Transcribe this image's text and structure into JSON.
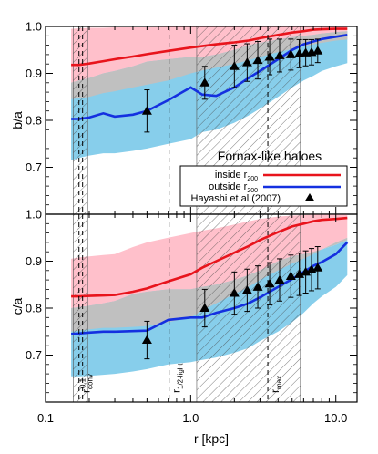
{
  "chart_data": {
    "type": "line",
    "x_scale": "log",
    "xlim": [
      0.1,
      14
    ],
    "xlabel": "r [kpc]",
    "xticks": [
      {
        "v": 0.1,
        "label": "0.1"
      },
      {
        "v": 1.0,
        "label": "1.0"
      },
      {
        "v": 10.0,
        "label": "10.0"
      }
    ],
    "legend_title": "Fornax-like haloes",
    "legend_placement": "upper-right of bottom panel",
    "legend": [
      {
        "key": "inside",
        "label": "inside r",
        "sub": "200",
        "color": "#e8141c"
      },
      {
        "key": "outside",
        "label": "outside r",
        "sub": "200",
        "color": "#1430e0"
      },
      {
        "key": "hayashi",
        "label": "Hayashi et al (2007)",
        "marker": "triangle"
      }
    ],
    "colors": {
      "red": "#e8141c",
      "blue": "#1430e0",
      "pink": "#ffc0cb",
      "lightblue": "#87ceeb",
      "overlap": "#c0c0c0"
    },
    "hatched_regions": [
      {
        "name": "convergence",
        "x": [
          0.155,
          0.195
        ]
      },
      {
        "name": "outer",
        "x": [
          1.1,
          5.7
        ]
      }
    ],
    "vlines": [
      {
        "name": "r_conv",
        "x": 0.17,
        "label_main": "r",
        "label_sub": "conv"
      },
      {
        "name": "r_conv_0.1",
        "x": 0.18,
        "label_main": "r",
        "label_sub": "0.1"
      },
      {
        "name": "r_half_light",
        "x": 0.71,
        "label_main": "r",
        "label_sub": "1/2-light"
      },
      {
        "name": "r_max",
        "x": 3.4,
        "label_main": "r",
        "label_sub": "max"
      }
    ],
    "panels": [
      {
        "id": "top",
        "ylabel": "b/a",
        "ylim": [
          0.6,
          1.0
        ],
        "yticks": [
          {
            "v": 0.7,
            "label": "0.7"
          },
          {
            "v": 0.8,
            "label": "0.8"
          },
          {
            "v": 0.9,
            "label": "0.9"
          },
          {
            "v": 1.0,
            "label": "1.0"
          }
        ],
        "x": [
          0.15,
          0.17,
          0.2,
          0.25,
          0.3,
          0.4,
          0.5,
          0.7,
          1.0,
          1.2,
          1.5,
          2.0,
          2.5,
          3.0,
          4.0,
          5.0,
          6.0,
          7.0,
          8.0,
          10.0,
          12.0
        ],
        "series": [
          {
            "name": "inside r200",
            "color": "#e8141c",
            "median": [
              0.918,
              0.918,
              0.921,
              0.926,
              0.93,
              0.936,
              0.941,
              0.948,
              0.955,
              0.958,
              0.962,
              0.966,
              0.97,
              0.975,
              0.982,
              0.987,
              0.99,
              0.993,
              0.994,
              0.995,
              0.995
            ],
            "lower": [
              0.845,
              0.847,
              0.85,
              0.858,
              0.862,
              0.87,
              0.876,
              0.885,
              0.9,
              0.906,
              0.912,
              0.92,
              0.928,
              0.935,
              0.945,
              0.952,
              0.958,
              0.962,
              0.965,
              0.97,
              0.972
            ],
            "upper": [
              0.995,
              0.996,
              0.997,
              0.997,
              0.998,
              0.998,
              0.998,
              0.999,
              0.999,
              0.999,
              0.999,
              0.999,
              1.0,
              1.0,
              1.0,
              1.0,
              1.0,
              1.0,
              1.0,
              1.0,
              1.0
            ]
          },
          {
            "name": "outside r200",
            "color": "#1430e0",
            "median": [
              0.803,
              0.803,
              0.806,
              0.815,
              0.808,
              0.812,
              0.82,
              0.843,
              0.87,
              0.855,
              0.852,
              0.87,
              0.89,
              0.905,
              0.93,
              0.95,
              0.962,
              0.968,
              0.973,
              0.978,
              0.982
            ],
            "lower": [
              0.715,
              0.72,
              0.725,
              0.73,
              0.73,
              0.735,
              0.74,
              0.75,
              0.76,
              0.775,
              0.78,
              0.795,
              0.81,
              0.825,
              0.85,
              0.87,
              0.885,
              0.895,
              0.905,
              0.915,
              0.922
            ],
            "upper": [
              0.88,
              0.885,
              0.89,
              0.9,
              0.905,
              0.915,
              0.925,
              0.93,
              0.935,
              0.935,
              0.94,
              0.95,
              0.96,
              0.965,
              0.972,
              0.977,
              0.98,
              0.982,
              0.985,
              0.988,
              0.99
            ]
          }
        ],
        "points": {
          "x": [
            0.5,
            1.25,
            2.0,
            2.45,
            2.9,
            3.5,
            4.1,
            4.9,
            5.6,
            6.2,
            6.8,
            7.5
          ],
          "y": [
            0.82,
            0.88,
            0.915,
            0.923,
            0.928,
            0.935,
            0.938,
            0.94,
            0.942,
            0.944,
            0.945,
            0.948
          ],
          "err": [
            0.045,
            0.035,
            0.045,
            0.04,
            0.04,
            0.038,
            0.035,
            0.033,
            0.03,
            0.028,
            0.027,
            0.025
          ]
        }
      },
      {
        "id": "bottom",
        "ylabel": "c/a",
        "ylim": [
          0.6,
          1.0
        ],
        "yticks": [
          {
            "v": 0.7,
            "label": "0.7"
          },
          {
            "v": 0.8,
            "label": "0.8"
          },
          {
            "v": 0.9,
            "label": "0.9"
          },
          {
            "v": 1.0,
            "label": "1.0"
          }
        ],
        "x": [
          0.15,
          0.17,
          0.2,
          0.25,
          0.3,
          0.4,
          0.5,
          0.7,
          1.0,
          1.2,
          1.5,
          2.0,
          2.5,
          3.0,
          4.0,
          5.0,
          6.0,
          7.0,
          8.0,
          10.0,
          12.0
        ],
        "series": [
          {
            "name": "inside r200",
            "color": "#e8141c",
            "median": [
              0.825,
              0.825,
              0.826,
              0.827,
              0.828,
              0.835,
              0.842,
              0.857,
              0.872,
              0.886,
              0.9,
              0.918,
              0.932,
              0.945,
              0.962,
              0.974,
              0.98,
              0.985,
              0.988,
              0.99,
              0.992
            ],
            "lower": [
              0.75,
              0.752,
              0.755,
              0.758,
              0.758,
              0.76,
              0.762,
              0.77,
              0.78,
              0.795,
              0.81,
              0.83,
              0.845,
              0.86,
              0.88,
              0.895,
              0.905,
              0.915,
              0.925,
              0.94,
              0.95
            ],
            "upper": [
              0.905,
              0.908,
              0.91,
              0.913,
              0.915,
              0.93,
              0.94,
              0.95,
              0.96,
              0.965,
              0.97,
              0.978,
              0.985,
              0.99,
              0.995,
              0.997,
              0.998,
              0.999,
              0.999,
              1.0,
              1.0
            ]
          },
          {
            "name": "outside r200",
            "color": "#1430e0",
            "median": [
              0.745,
              0.746,
              0.748,
              0.75,
              0.75,
              0.751,
              0.752,
              0.775,
              0.78,
              0.78,
              0.79,
              0.8,
              0.81,
              0.823,
              0.845,
              0.862,
              0.877,
              0.89,
              0.898,
              0.915,
              0.94
            ],
            "lower": [
              0.655,
              0.655,
              0.656,
              0.658,
              0.66,
              0.665,
              0.67,
              0.68,
              0.685,
              0.69,
              0.695,
              0.705,
              0.715,
              0.73,
              0.75,
              0.77,
              0.79,
              0.81,
              0.825,
              0.845,
              0.87
            ],
            "upper": [
              0.8,
              0.802,
              0.805,
              0.81,
              0.815,
              0.83,
              0.835,
              0.84,
              0.84,
              0.845,
              0.85,
              0.86,
              0.87,
              0.88,
              0.9,
              0.91,
              0.915,
              0.92,
              0.925,
              0.935,
              0.945
            ]
          }
        ],
        "points": {
          "x": [
            0.5,
            1.25,
            2.0,
            2.45,
            2.9,
            3.5,
            4.1,
            4.9,
            5.6,
            6.2,
            6.8,
            7.5
          ],
          "y": [
            0.732,
            0.8,
            0.832,
            0.838,
            0.845,
            0.852,
            0.86,
            0.868,
            0.872,
            0.877,
            0.882,
            0.886
          ],
          "err": [
            0.04,
            0.04,
            0.045,
            0.045,
            0.045,
            0.045,
            0.045,
            0.045,
            0.045,
            0.045,
            0.045,
            0.045
          ]
        }
      }
    ]
  }
}
